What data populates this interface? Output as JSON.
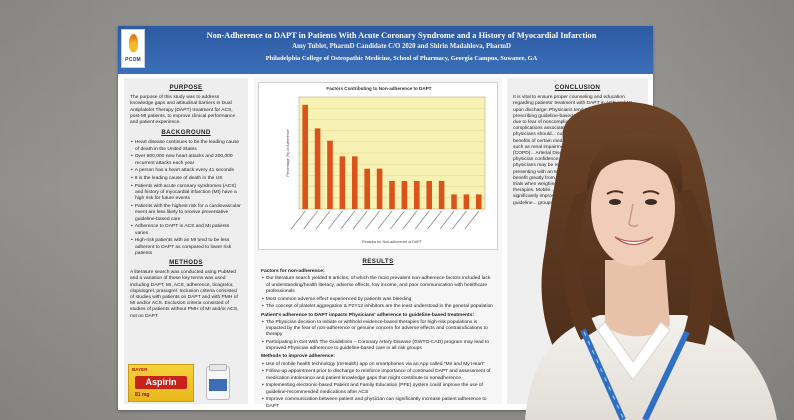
{
  "poster": {
    "logo_text": "PCOM",
    "title": "Non-Adherence to DAPT in Patients With Acute Coronary Syndrome and a History of Myocardial Infarction",
    "authors": "Amy Tublet, PharmD Candidate C/O 2020 and Shirin Madahlova, PharmD",
    "affiliation": "Philadelphia College of Osteopathic Medicine, School of Pharmacy, Georgia Campus, Suwanee, GA",
    "purpose": {
      "heading": "PURPOSE",
      "text": "The purpose of this study was to address knowledge gaps and attitudinal barriers in Dual Antiplatelet Therapy (DAPT) treatment for ACS, post-MI patients, to improve clinical performance and patient experience."
    },
    "background": {
      "heading": "BACKGROUND",
      "bullets": [
        "Heart disease continues to be the leading cause of death in the United States",
        "Over 600,000 new heart attacks and 200,000 recurrent attacks each year",
        "A person has a heart attack every 41 seconds",
        "It is the leading cause of death in the US",
        "Patients with acute coronary syndromes (ACS) and history of myocardial infarction (MI) have a high risk for future events",
        "Patients with the highest risk for a cardiovascular event are less likely to receive preventative guideline-based care",
        "Adherence to DAPT in ACS and MI patients varies",
        "High-risk patients with an MI tend to be less adherent to DAPT as compared to lower risk patients"
      ]
    },
    "methods": {
      "heading": "METHODS",
      "text": "A literature search was conducted using PubMed and a variation of these key terms was used including DAPT, MI, ACS, adherence, ticagrelor, clopidogrel, prasugrel. Inclusion criteria consisted of studies with patients on DAPT and with PMH of MI and/or ACS. Exclusion criteria consisted of studies of patients without PMH of MI and/or ACS, not on DAPT."
    },
    "results": {
      "heading": "RESULTS",
      "factors_heading": "Factors for non-adherence:",
      "factors": [
        "Our literature search yielded 9 articles, of which the most prevalent non-adherence factors included lack of understanding/health literacy, adverse effects, low income, and poor communication with healthcare professionals",
        "Most common adverse effect experienced by patients was bleeding",
        "The concept of platelet aggregation & P2Y12 inhibitors are the least understood in the general population"
      ],
      "impact_heading": "Patient's adherence to DAPT impacts Physicians' adherence to guideline-based treatments:",
      "impact": [
        "The Physician decision to initiate or withhold evidence-based therapies for high-risk populations is impacted by the fear of non-adherence or genuine concern for adverse effects and contraindications to therapy",
        "Participating in Get With The Guidelines – Coronary Artery Disease (GWTG-CAD) program may lead to improved Physician adherence to guideline-based care in all risk groups"
      ],
      "improve_heading": "Methods to improve adherence:",
      "improve": [
        "Use of mobile health technology (mHealth) app on smartphones via an App called \"Me and My Heart\"",
        "Follow-up appointment prior to discharge to reinforce importance of continued DAPT and assessment of medication intolerance and patient knowledge gaps that might contribute to nonadherence",
        "Implementing electronic-based Patient and Family Education (PFE) system could improve the use of guideline-recommended medications after ACS",
        "Improve communication between patient and physician can significantly increase patient adherence to DAPT"
      ]
    },
    "conclusion": {
      "heading": "CONCLUSION",
      "text": "It is vital to ensure proper counseling and education regarding patients' treatment with DAPT in ACS and MI upon discharge. Physicians tend to steer away from prescribing guideline-based therapies to high-risk patients due to fear of noncompliance and other side effects and complications associated with patient population. However, physicians should... current evidence regarding whether... benefits of certain medications, especially... comorbidities such as renal impairment... Obstructive Lung Disease (COPD)... Arterial Disease (PAD) could... increase physician confidence... based therapies for higher-risk... physicians may be reluctant... therapies in their everyday... presenting with an MI or... should keep in mind the... would benefit greatly from... therapies. The objective... clinical trials when weighing... for high-risk patients in... based therapies. Mobile... measures can be put in... and significantly improve... it can be utilized to... adherence to guideline... groups with an MI."
    },
    "drug": {
      "brand": "BAYER",
      "name": "Aspirin",
      "dose": "81 mg"
    },
    "chart": {
      "title": "Factors Contributing to Non-adherence to DAPT",
      "y_label": "Percentage (%) of Adherence",
      "x_label": "Reasons for Non-adherence of DAPT"
    }
  },
  "chart_data": {
    "type": "bar",
    "title": "Factors Contributing to Non-adherence to DAPT",
    "xlabel": "Reasons for Non-adherence of DAPT",
    "ylabel": "Percentage (%) of Adherence",
    "ylim": [
      0,
      100
    ],
    "grid": true,
    "categories": [
      "",
      "",
      "",
      "",
      "",
      "",
      "",
      "",
      "",
      "",
      "",
      "",
      "",
      "",
      ""
    ],
    "values": [
      93,
      72,
      61,
      47,
      47,
      36,
      36,
      25,
      25,
      25,
      25,
      25,
      13,
      13,
      13
    ],
    "bar_color": "#d9541a",
    "plot_bg": "#f7f1b4"
  }
}
